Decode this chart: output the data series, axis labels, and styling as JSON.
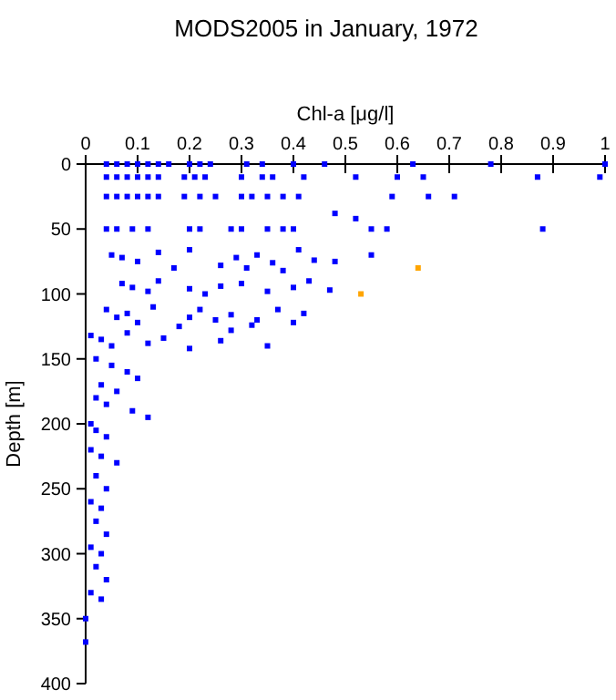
{
  "chart_data": {
    "type": "scatter",
    "title": "MODS2005 in January, 1972",
    "xlabel": "Chl-a [μg/l]",
    "ylabel": "Depth [m]",
    "xlim": [
      0,
      1
    ],
    "xticks": [
      0,
      0.1,
      0.2,
      0.3,
      0.4,
      0.5,
      0.6,
      0.7,
      0.8,
      0.9,
      1
    ],
    "ylim": [
      400,
      0
    ],
    "yticks": [
      0,
      50,
      100,
      150,
      200,
      250,
      300,
      350,
      400
    ],
    "grid": false,
    "marker": "square",
    "series": [
      {
        "color": "#0000ff",
        "x": [
          0.04,
          0.06,
          0.08,
          0.1,
          0.12,
          0.14,
          0.16,
          0.2,
          0.22,
          0.24,
          0.31,
          0.34,
          0.4,
          0.46,
          0.63,
          0.78,
          1.0,
          0.04,
          0.06,
          0.08,
          0.1,
          0.12,
          0.14,
          0.19,
          0.21,
          0.23,
          0.3,
          0.34,
          0.36,
          0.42,
          0.52,
          0.6,
          0.65,
          0.87,
          0.99,
          0.04,
          0.06,
          0.08,
          0.1,
          0.12,
          0.14,
          0.19,
          0.22,
          0.25,
          0.3,
          0.32,
          0.35,
          0.38,
          0.41,
          0.59,
          0.66,
          0.71,
          0.04,
          0.06,
          0.09,
          0.12,
          0.2,
          0.22,
          0.28,
          0.3,
          0.35,
          0.38,
          0.4,
          0.55,
          0.58,
          0.88,
          0.52,
          0.48,
          0.05,
          0.07,
          0.1,
          0.14,
          0.17,
          0.2,
          0.26,
          0.29,
          0.31,
          0.33,
          0.36,
          0.38,
          0.41,
          0.44,
          0.55,
          0.48,
          0.07,
          0.09,
          0.12,
          0.14,
          0.2,
          0.23,
          0.26,
          0.3,
          0.35,
          0.4,
          0.43,
          0.47,
          0.04,
          0.06,
          0.08,
          0.1,
          0.13,
          0.18,
          0.2,
          0.22,
          0.25,
          0.28,
          0.32,
          0.37,
          0.33,
          0.4,
          0.42,
          0.01,
          0.03,
          0.05,
          0.08,
          0.12,
          0.15,
          0.2,
          0.26,
          0.35,
          0.28,
          0.02,
          0.05,
          0.08,
          0.1,
          0.03,
          0.06,
          0.02,
          0.04,
          0.09,
          0.12,
          0.01,
          0.02,
          0.04,
          0.01,
          0.03,
          0.06,
          0.02,
          0.04,
          0.01,
          0.03,
          0.02,
          0.04,
          0.01,
          0.03,
          0.02,
          0.04,
          0.01,
          0.03,
          0.0,
          0.0
        ],
        "values": [
          0,
          0,
          0,
          0,
          0,
          0,
          0,
          0,
          0,
          0,
          0,
          0,
          0,
          0,
          0,
          0,
          0,
          10,
          10,
          10,
          10,
          10,
          10,
          10,
          10,
          10,
          10,
          10,
          10,
          10,
          10,
          10,
          10,
          10,
          10,
          25,
          25,
          25,
          25,
          25,
          25,
          25,
          25,
          25,
          25,
          25,
          25,
          25,
          25,
          25,
          25,
          25,
          50,
          50,
          50,
          50,
          50,
          50,
          50,
          50,
          50,
          50,
          50,
          50,
          50,
          50,
          42,
          38,
          70,
          72,
          75,
          68,
          80,
          66,
          78,
          72,
          80,
          70,
          76,
          82,
          66,
          74,
          70,
          75,
          92,
          95,
          98,
          90,
          96,
          100,
          94,
          92,
          98,
          95,
          90,
          97,
          112,
          118,
          115,
          122,
          110,
          125,
          118,
          112,
          120,
          116,
          124,
          112,
          120,
          122,
          115,
          132,
          135,
          140,
          130,
          138,
          134,
          142,
          136,
          140,
          128,
          150,
          155,
          160,
          165,
          170,
          175,
          180,
          185,
          190,
          195,
          200,
          205,
          210,
          220,
          225,
          230,
          240,
          250,
          260,
          265,
          275,
          285,
          295,
          300,
          310,
          320,
          330,
          335,
          350,
          368
        ]
      },
      {
        "color": "#ffa500",
        "x": [
          0.64,
          0.53
        ],
        "values": [
          80,
          100
        ]
      }
    ]
  }
}
